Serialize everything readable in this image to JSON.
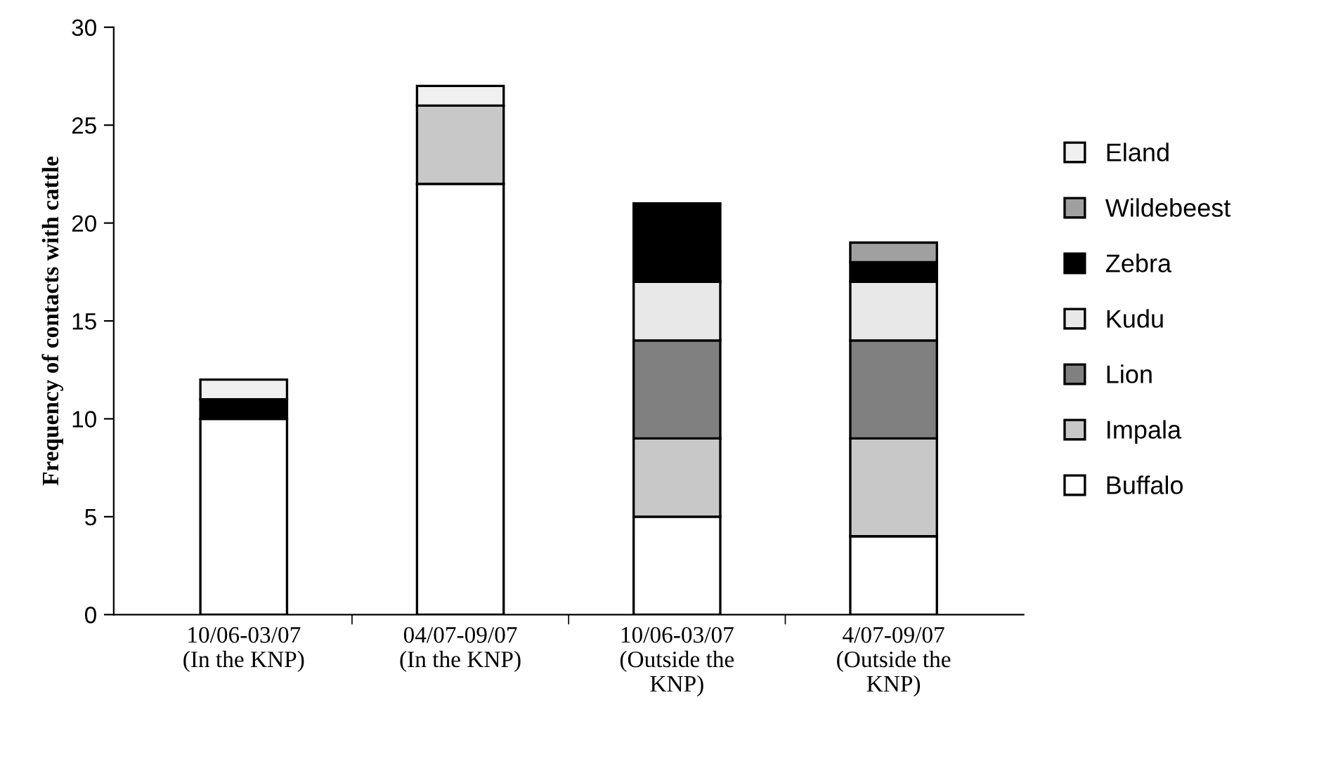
{
  "chart_data": {
    "type": "bar",
    "stacked": true,
    "ylabel": "Frequency of contacts with cattle",
    "categories": [
      "10/06-03/07\n(In the KNP)",
      "04/07-09/07\n(In the KNP)",
      "10/06-03/07\n(Outside the\nKNP)",
      "4/07-09/07\n(Outside the\nKNP)"
    ],
    "series": [
      {
        "name": "Buffalo",
        "color": "#ffffff",
        "values": [
          10,
          22,
          5,
          4
        ]
      },
      {
        "name": "Impala",
        "color": "#c8c8c8",
        "values": [
          0,
          4,
          4,
          5
        ]
      },
      {
        "name": "Lion",
        "color": "#808080",
        "values": [
          0,
          0,
          5,
          5
        ]
      },
      {
        "name": "Kudu",
        "color": "#e8e8e8",
        "values": [
          0,
          0,
          3,
          3
        ]
      },
      {
        "name": "Zebra",
        "color": "#000000",
        "values": [
          1,
          0,
          4,
          1
        ]
      },
      {
        "name": "Wildebeest",
        "color": "#a0a0a0",
        "values": [
          0,
          0,
          0,
          1
        ]
      },
      {
        "name": "Eland",
        "color": "#f0f0f0",
        "values": [
          1,
          1,
          0,
          0
        ]
      }
    ],
    "ylim": [
      0,
      30
    ],
    "yticks": [
      0,
      5,
      10,
      15,
      20,
      25,
      30
    ],
    "grid": false,
    "legend": "right"
  }
}
